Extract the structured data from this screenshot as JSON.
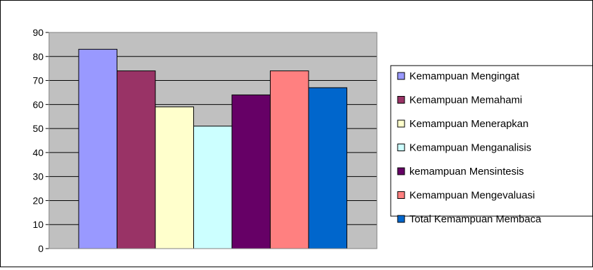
{
  "chart_data": {
    "type": "bar",
    "title": "",
    "xlabel": "",
    "ylabel": "",
    "ylim": [
      0,
      90
    ],
    "yticks": [
      0,
      10,
      20,
      30,
      40,
      50,
      60,
      70,
      80,
      90
    ],
    "grid": true,
    "plot_background": "#C0C0C0",
    "legend_position": "right",
    "series": [
      {
        "name": "Kemampuan Mengingat",
        "value": 83,
        "color": "#9999FF"
      },
      {
        "name": "Kemampuan Memahami",
        "value": 74,
        "color": "#993366"
      },
      {
        "name": "Kemampuan Menerapkan",
        "value": 59,
        "color": "#FFFFCC"
      },
      {
        "name": "Kemampuan Menganalisis",
        "value": 51,
        "color": "#CCFFFF"
      },
      {
        "name": "kemampuan Mensintesis",
        "value": 64,
        "color": "#660066"
      },
      {
        "name": "Kemampuan Mengevaluasi",
        "value": 74,
        "color": "#FF8080"
      },
      {
        "name": "Total Kemampuan Membaca",
        "value": 67,
        "color": "#0066CC"
      }
    ]
  }
}
